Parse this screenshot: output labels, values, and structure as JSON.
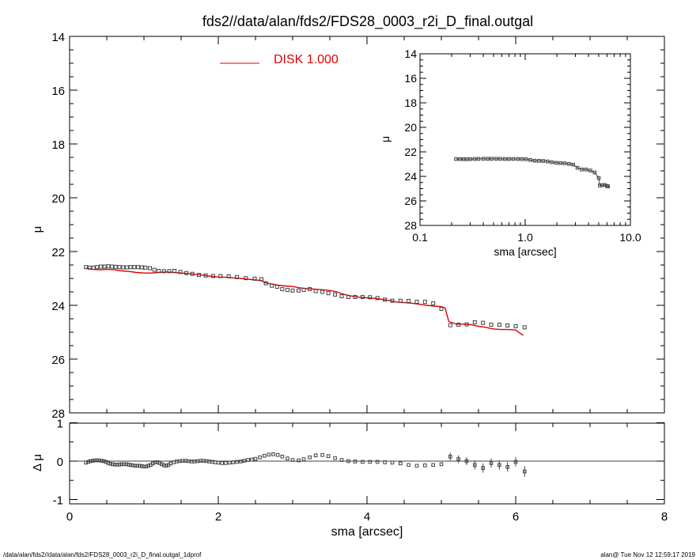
{
  "title": "fds2//data/alan/fds2/FDS28_0003_r2i_D_final.outgal",
  "footer": {
    "left": "/data/alan/fds2//data/alan/fds2/FDS28_0003_r2i_D_final.outgal_1dprof",
    "right": "alan@  Tue Nov 12 12:59:17 2019"
  },
  "colors": {
    "model": "#e00000",
    "data": "#404040",
    "axes": "#000000",
    "legend_text": "#e00000"
  },
  "chart_data": [
    {
      "id": "main",
      "type": "scatter",
      "xlabel": "",
      "ylabel": "μ",
      "xlim": [
        0,
        8
      ],
      "ylim": [
        28,
        14
      ],
      "y_inverted": true,
      "xticks": [
        0,
        2,
        4,
        6,
        8
      ],
      "yticks": [
        14,
        16,
        18,
        20,
        22,
        24,
        26,
        28
      ],
      "legend": {
        "label": "DISK  1.000",
        "placement": "top-center"
      },
      "series": [
        {
          "name": "data",
          "marker": "open-square",
          "x": [
            0.22,
            0.27,
            0.32,
            0.37,
            0.42,
            0.47,
            0.52,
            0.57,
            0.62,
            0.67,
            0.72,
            0.77,
            0.82,
            0.87,
            0.92,
            0.97,
            1.02,
            1.08,
            1.14,
            1.2,
            1.27,
            1.34,
            1.41,
            1.49,
            1.57,
            1.65,
            1.74,
            1.83,
            1.93,
            2.03,
            2.14,
            2.25,
            2.37,
            2.49,
            2.58,
            2.64,
            2.72,
            2.79,
            2.86,
            2.93,
            3.0,
            3.08,
            3.15,
            3.23,
            3.31,
            3.4,
            3.48,
            3.57,
            3.66,
            3.75,
            3.84,
            3.94,
            4.04,
            4.14,
            4.24,
            4.34,
            4.45,
            4.56,
            4.67,
            4.78,
            4.89,
            5.0,
            5.12,
            5.23,
            5.34,
            5.45,
            5.56,
            5.67,
            5.78,
            5.89,
            6.0,
            6.12
          ],
          "y": [
            22.58,
            22.6,
            22.6,
            22.58,
            22.56,
            22.56,
            22.55,
            22.56,
            22.57,
            22.58,
            22.59,
            22.59,
            22.58,
            22.58,
            22.58,
            22.59,
            22.6,
            22.62,
            22.68,
            22.72,
            22.73,
            22.73,
            22.72,
            22.76,
            22.8,
            22.83,
            22.87,
            22.89,
            22.91,
            22.91,
            22.92,
            22.95,
            22.99,
            23.01,
            23.03,
            23.18,
            23.27,
            23.31,
            23.4,
            23.43,
            23.45,
            23.45,
            23.43,
            23.4,
            23.47,
            23.5,
            23.55,
            23.6,
            23.66,
            23.69,
            23.69,
            23.69,
            23.7,
            23.73,
            23.79,
            23.83,
            23.83,
            23.84,
            23.87,
            23.87,
            23.93,
            24.13,
            24.74,
            24.72,
            24.71,
            24.63,
            24.65,
            24.72,
            24.72,
            24.75,
            24.78,
            24.82
          ]
        },
        {
          "name": "model",
          "type": "line",
          "x": [
            0.22,
            0.3,
            0.4,
            0.5,
            0.6,
            0.7,
            0.8,
            0.9,
            1.0,
            1.1,
            1.2,
            1.3,
            1.4,
            1.5,
            1.6,
            1.7,
            1.8,
            1.9,
            2.0,
            2.1,
            2.2,
            2.3,
            2.4,
            2.5,
            2.58,
            2.62,
            2.7,
            2.8,
            2.9,
            3.0,
            3.1,
            3.2,
            3.3,
            3.4,
            3.5,
            3.6,
            3.65,
            3.7,
            3.8,
            3.9,
            4.0,
            4.1,
            4.2,
            4.3,
            4.4,
            4.5,
            4.6,
            4.7,
            4.8,
            4.9,
            5.0,
            5.05,
            5.1,
            5.2,
            5.3,
            5.4,
            5.5,
            5.6,
            5.7,
            5.8,
            5.9,
            6.0,
            6.1
          ],
          "y": [
            22.62,
            22.66,
            22.68,
            22.66,
            22.68,
            22.72,
            22.74,
            22.78,
            22.8,
            22.8,
            22.78,
            22.76,
            22.78,
            22.8,
            22.82,
            22.85,
            22.88,
            22.92,
            22.95,
            22.96,
            22.98,
            23.0,
            23.03,
            23.06,
            23.08,
            23.15,
            23.2,
            23.25,
            23.28,
            23.3,
            23.35,
            23.38,
            23.4,
            23.42,
            23.45,
            23.5,
            23.56,
            23.6,
            23.66,
            23.7,
            23.72,
            23.74,
            23.78,
            23.82,
            23.88,
            23.9,
            23.92,
            23.96,
            24.0,
            24.03,
            24.05,
            24.1,
            24.6,
            24.7,
            24.7,
            24.72,
            24.78,
            24.82,
            24.88,
            24.9,
            24.9,
            24.92,
            25.12
          ]
        }
      ]
    },
    {
      "id": "residual",
      "type": "scatter",
      "xlabel": "sma [arcsec]",
      "ylabel": "Δ μ",
      "xlim": [
        0,
        8
      ],
      "ylim": [
        -1,
        1
      ],
      "xticks": [
        0,
        2,
        4,
        6,
        8
      ],
      "yticks": [
        -1,
        0,
        1
      ],
      "zero_line": true,
      "series": [
        {
          "name": "residual",
          "marker": "open-square",
          "x": [
            0.22,
            0.25,
            0.28,
            0.31,
            0.34,
            0.37,
            0.4,
            0.43,
            0.46,
            0.49,
            0.52,
            0.55,
            0.58,
            0.61,
            0.64,
            0.67,
            0.7,
            0.73,
            0.76,
            0.79,
            0.82,
            0.85,
            0.88,
            0.91,
            0.94,
            0.97,
            1.0,
            1.03,
            1.06,
            1.09,
            1.12,
            1.15,
            1.18,
            1.21,
            1.24,
            1.27,
            1.3,
            1.33,
            1.36,
            1.4,
            1.44,
            1.48,
            1.52,
            1.56,
            1.6,
            1.64,
            1.68,
            1.72,
            1.76,
            1.8,
            1.84,
            1.88,
            1.92,
            1.96,
            2.0,
            2.05,
            2.1,
            2.15,
            2.2,
            2.25,
            2.3,
            2.35,
            2.4,
            2.45,
            2.5,
            2.56,
            2.62,
            2.68,
            2.74,
            2.8,
            2.86,
            2.93,
            3.0,
            3.08,
            3.15,
            3.23,
            3.31,
            3.4,
            3.48,
            3.57,
            3.66,
            3.75,
            3.84,
            3.94,
            4.04,
            4.14,
            4.24,
            4.34,
            4.45,
            4.56,
            4.67,
            4.78,
            4.89,
            5.0,
            5.12,
            5.23,
            5.34,
            5.45,
            5.56,
            5.67,
            5.78,
            5.89,
            6.0,
            6.12
          ],
          "y": [
            -0.04,
            -0.02,
            0.0,
            0.01,
            0.02,
            0.02,
            0.02,
            0.01,
            0.0,
            -0.02,
            -0.05,
            -0.07,
            -0.08,
            -0.09,
            -0.09,
            -0.09,
            -0.08,
            -0.08,
            -0.08,
            -0.09,
            -0.1,
            -0.11,
            -0.12,
            -0.12,
            -0.12,
            -0.13,
            -0.14,
            -0.14,
            -0.12,
            -0.1,
            -0.06,
            -0.03,
            -0.03,
            -0.05,
            -0.08,
            -0.11,
            -0.12,
            -0.1,
            -0.06,
            -0.03,
            -0.01,
            0.0,
            0.01,
            0.01,
            0.0,
            -0.01,
            -0.01,
            0.0,
            0.01,
            0.01,
            0.0,
            -0.01,
            -0.02,
            -0.03,
            -0.04,
            -0.05,
            -0.05,
            -0.04,
            -0.03,
            -0.02,
            -0.01,
            0.01,
            0.03,
            0.04,
            0.06,
            0.1,
            0.14,
            0.17,
            0.18,
            0.16,
            0.12,
            0.07,
            0.03,
            0.02,
            0.05,
            0.1,
            0.15,
            0.16,
            0.13,
            0.08,
            0.03,
            0.0,
            -0.01,
            -0.02,
            -0.02,
            -0.02,
            -0.03,
            -0.04,
            -0.06,
            -0.1,
            -0.12,
            -0.11,
            -0.1,
            -0.08,
            0.12,
            0.05,
            0.0,
            -0.1,
            -0.18,
            -0.05,
            -0.1,
            -0.15,
            -0.02,
            -0.27
          ],
          "err": [
            0,
            0,
            0,
            0,
            0,
            0,
            0,
            0,
            0,
            0,
            0,
            0,
            0,
            0,
            0,
            0,
            0,
            0,
            0,
            0,
            0,
            0,
            0,
            0,
            0,
            0,
            0,
            0,
            0,
            0,
            0,
            0,
            0,
            0,
            0,
            0,
            0,
            0,
            0,
            0,
            0,
            0,
            0,
            0,
            0,
            0,
            0,
            0,
            0,
            0,
            0,
            0,
            0,
            0,
            0,
            0,
            0,
            0,
            0,
            0,
            0,
            0,
            0,
            0,
            0,
            0,
            0,
            0,
            0,
            0,
            0,
            0,
            0,
            0,
            0,
            0,
            0,
            0,
            0,
            0,
            0,
            0,
            0,
            0,
            0,
            0,
            0,
            0,
            0,
            0,
            0,
            0,
            0,
            0,
            0.1,
            0.1,
            0.1,
            0.12,
            0.12,
            0.12,
            0.12,
            0.12,
            0.12,
            0.14
          ]
        }
      ]
    },
    {
      "id": "inset",
      "type": "scatter",
      "xscale": "log",
      "xlabel": "sma [arcsec]",
      "ylabel": "μ",
      "xlim": [
        0.1,
        10.0
      ],
      "ylim": [
        28,
        14
      ],
      "y_inverted": true,
      "xticks": [
        0.1,
        1.0,
        10.0
      ],
      "xtick_labels": [
        "0.1",
        "1.0",
        "10.0"
      ],
      "yticks": [
        14,
        16,
        18,
        20,
        22,
        24,
        26,
        28
      ],
      "series": [
        {
          "name": "data",
          "marker": "open-square",
          "x": [
            0.22,
            0.24,
            0.26,
            0.28,
            0.3,
            0.33,
            0.36,
            0.4,
            0.44,
            0.48,
            0.53,
            0.58,
            0.64,
            0.7,
            0.77,
            0.85,
            0.93,
            1.02,
            1.12,
            1.23,
            1.35,
            1.48,
            1.63,
            1.79,
            1.97,
            2.16,
            2.37,
            2.61,
            2.86,
            3.14,
            3.45,
            3.79,
            4.16,
            4.57,
            5.0,
            5.12,
            5.4,
            5.7,
            6.0,
            6.12
          ],
          "y": [
            22.58,
            22.59,
            22.6,
            22.6,
            22.59,
            22.58,
            22.57,
            22.56,
            22.56,
            22.56,
            22.56,
            22.57,
            22.58,
            22.58,
            22.58,
            22.58,
            22.59,
            22.6,
            22.66,
            22.72,
            22.73,
            22.74,
            22.78,
            22.84,
            22.89,
            22.91,
            22.93,
            22.98,
            23.04,
            23.3,
            23.44,
            23.44,
            23.52,
            23.68,
            24.13,
            24.74,
            24.72,
            24.7,
            24.78,
            24.82
          ]
        }
      ]
    }
  ]
}
